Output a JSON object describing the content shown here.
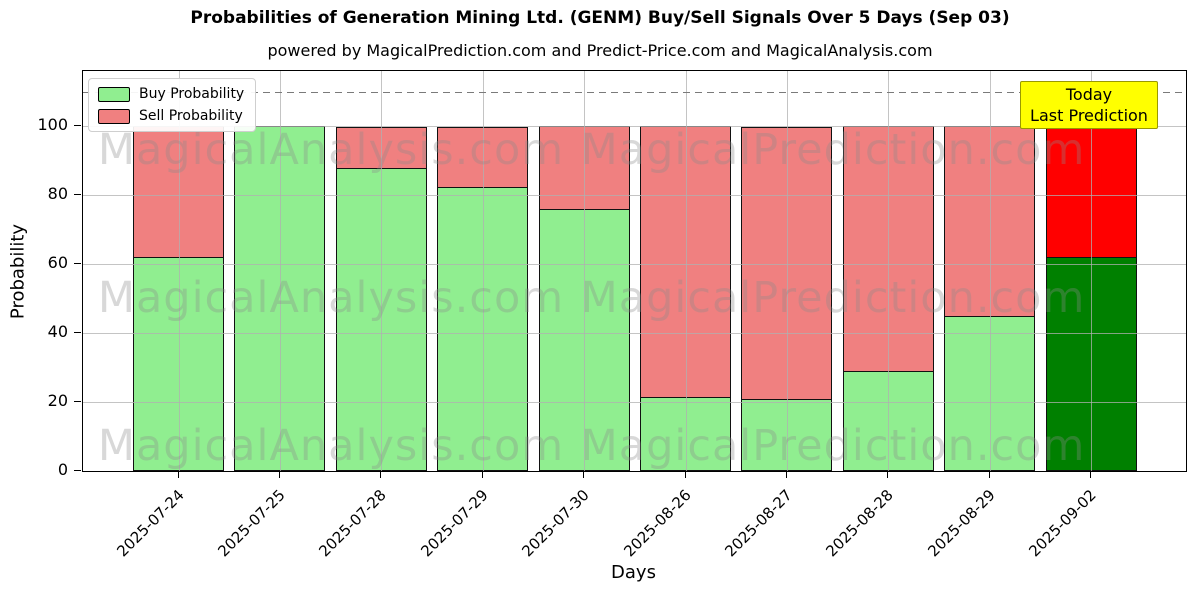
{
  "chart_data": {
    "type": "bar",
    "stacked": true,
    "title": "Probabilities of Generation Mining Ltd. (GENM) Buy/Sell Signals Over 5 Days (Sep 03)",
    "subtitle": "powered by MagicalPrediction.com and Predict-Price.com and MagicalAnalysis.com",
    "xlabel": "Days",
    "ylabel": "Probability",
    "categories": [
      "2025-07-24",
      "2025-07-25",
      "2025-07-28",
      "2025-07-29",
      "2025-07-30",
      "2025-08-26",
      "2025-08-27",
      "2025-08-28",
      "2025-08-29",
      "2025-09-02"
    ],
    "series": [
      {
        "name": "Buy Probability",
        "color": "#90ee90",
        "values": [
          62,
          100,
          88,
          82.5,
          76,
          21.5,
          21,
          29,
          45,
          62
        ]
      },
      {
        "name": "Sell Probability",
        "color": "#f08080",
        "values": [
          38,
          0,
          12,
          17.5,
          24,
          78.5,
          79,
          71,
          55,
          38
        ]
      }
    ],
    "today_index": 9,
    "today_colors": {
      "buy": "#008000",
      "sell": "#ff0000"
    },
    "ylim": [
      0,
      116
    ],
    "yticks": [
      0,
      20,
      40,
      60,
      80,
      100
    ],
    "grid": true,
    "dashed_line_y": 110,
    "legend_position": "upper-left",
    "annotation": {
      "lines": [
        "Today",
        "Last Prediction"
      ],
      "bg_color": "#ffff00",
      "border_color": "#999900"
    },
    "watermarks": {
      "left": "MagicalAnalysis.com",
      "right": "MagicalPrediction.com",
      "rows": 3,
      "color": "#8c8c8c"
    },
    "colors": {
      "axis": "#000000",
      "grid": "#b0b0b0",
      "dashed_line": "#7a7a7a",
      "bar_edge": "#111111"
    }
  }
}
